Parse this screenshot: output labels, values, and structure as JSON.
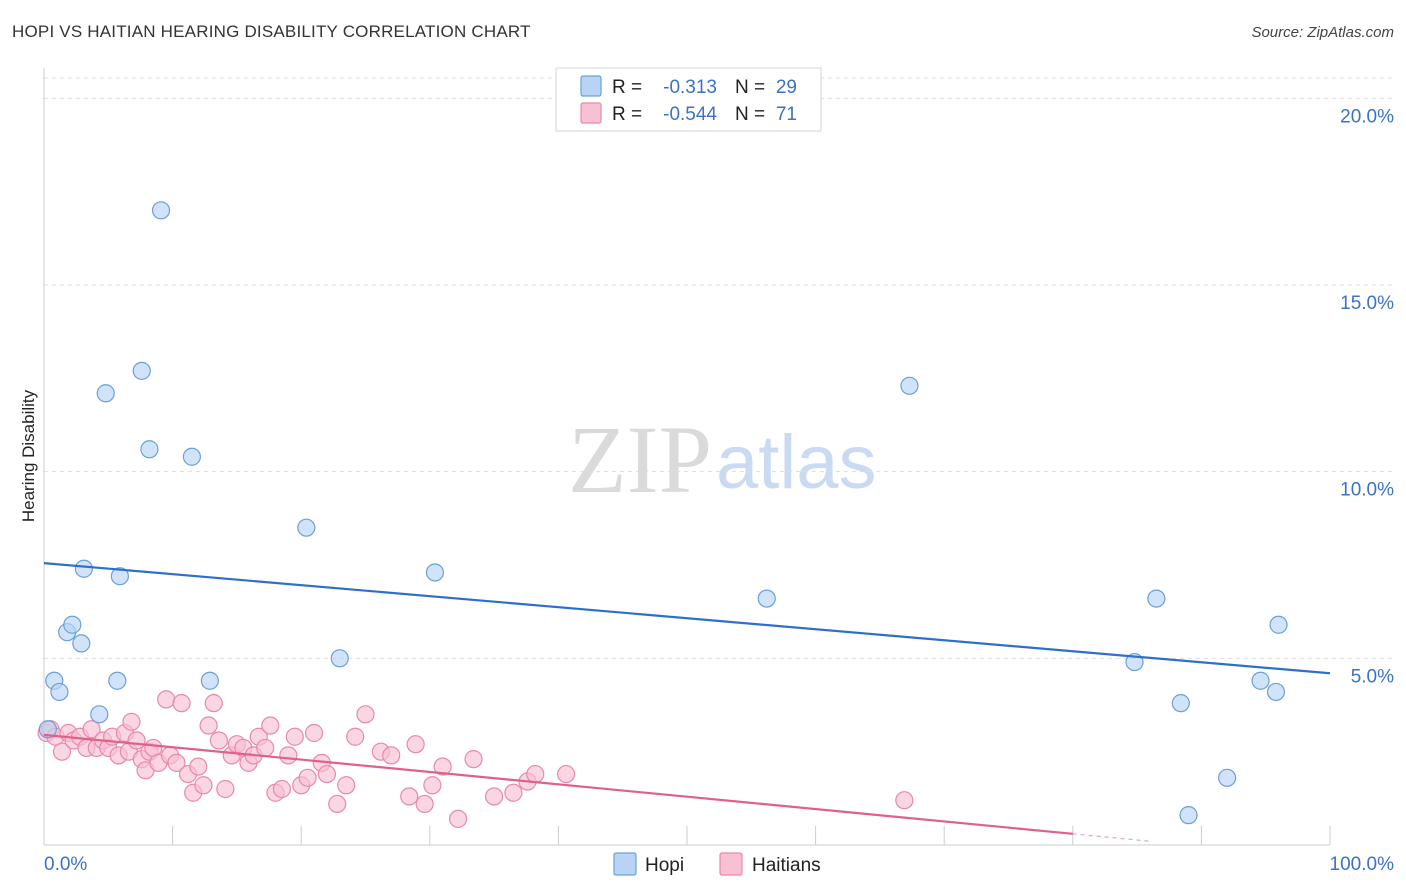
{
  "title": "HOPI VS HAITIAN HEARING DISABILITY CORRELATION CHART",
  "source": "Source: ZipAtlas.com",
  "watermark": {
    "part1": "ZIP",
    "part2": "atlas"
  },
  "colors": {
    "hopi_fill": "#b8d4f5",
    "hopi_stroke": "#6d9fd6",
    "hopi_line": "#2d6fcc",
    "haitians_fill": "#f7c0d3",
    "haitians_stroke": "#e889a9",
    "haitians_line": "#e0608c",
    "grid": "#dddddd",
    "tick_label": "#3b72c4"
  },
  "legend_top": {
    "rows": [
      {
        "series": "Hopi",
        "r_label": "R =",
        "r_value": "-0.313",
        "n_label": "N =",
        "n_value": "29"
      },
      {
        "series": "Haitians",
        "r_label": "R =",
        "r_value": "-0.544",
        "n_label": "N =",
        "n_value": "71"
      }
    ]
  },
  "legend_bottom": {
    "items": [
      "Hopi",
      "Haitians"
    ]
  },
  "chart_data": {
    "type": "scatter",
    "title": "HOPI VS HAITIAN HEARING DISABILITY CORRELATION CHART",
    "xlabel": "",
    "ylabel": "Hearing Disability",
    "xlim": [
      0,
      100
    ],
    "ylim": [
      0,
      21
    ],
    "x_tick_labels": [
      "0.0%",
      "100.0%"
    ],
    "y_ticks": [
      5,
      10,
      15,
      20
    ],
    "y_tick_labels": [
      "5.0%",
      "10.0%",
      "15.0%",
      "20.0%"
    ],
    "grid": true,
    "legend": "top-center",
    "series": [
      {
        "name": "Hopi",
        "r": -0.313,
        "n": 29,
        "trend": {
          "x": [
            0,
            100
          ],
          "y": [
            7.55,
            4.6
          ]
        },
        "points": [
          {
            "x": 0.3,
            "y": 3.1
          },
          {
            "x": 0.8,
            "y": 4.4
          },
          {
            "x": 1.2,
            "y": 4.1
          },
          {
            "x": 1.8,
            "y": 5.7
          },
          {
            "x": 2.2,
            "y": 5.9
          },
          {
            "x": 2.9,
            "y": 5.4
          },
          {
            "x": 3.1,
            "y": 7.4
          },
          {
            "x": 4.3,
            "y": 3.5
          },
          {
            "x": 4.8,
            "y": 12.1
          },
          {
            "x": 5.7,
            "y": 4.4
          },
          {
            "x": 5.9,
            "y": 7.2
          },
          {
            "x": 7.6,
            "y": 12.7
          },
          {
            "x": 8.2,
            "y": 10.6
          },
          {
            "x": 9.1,
            "y": 17.0
          },
          {
            "x": 11.5,
            "y": 10.4
          },
          {
            "x": 12.9,
            "y": 4.4
          },
          {
            "x": 20.4,
            "y": 8.5
          },
          {
            "x": 23.0,
            "y": 5.0
          },
          {
            "x": 30.4,
            "y": 7.3
          },
          {
            "x": 56.2,
            "y": 6.6
          },
          {
            "x": 67.3,
            "y": 12.3
          },
          {
            "x": 84.8,
            "y": 4.9
          },
          {
            "x": 86.5,
            "y": 6.6
          },
          {
            "x": 88.4,
            "y": 3.8
          },
          {
            "x": 89.0,
            "y": 0.8
          },
          {
            "x": 92.0,
            "y": 1.8
          },
          {
            "x": 94.6,
            "y": 4.4
          },
          {
            "x": 95.8,
            "y": 4.1
          },
          {
            "x": 96.0,
            "y": 5.9
          }
        ]
      },
      {
        "name": "Haitians",
        "r": -0.544,
        "n": 71,
        "trend": {
          "x": [
            0,
            80
          ],
          "y": [
            2.95,
            0.3
          ]
        },
        "trend_dashed": {
          "x": [
            80,
            86
          ],
          "y": [
            0.3,
            0.1
          ]
        },
        "points": [
          {
            "x": 0.2,
            "y": 3.0
          },
          {
            "x": 0.5,
            "y": 3.1
          },
          {
            "x": 0.9,
            "y": 2.9
          },
          {
            "x": 1.4,
            "y": 2.5
          },
          {
            "x": 1.9,
            "y": 3.0
          },
          {
            "x": 2.3,
            "y": 2.8
          },
          {
            "x": 2.8,
            "y": 2.9
          },
          {
            "x": 3.3,
            "y": 2.6
          },
          {
            "x": 3.7,
            "y": 3.1
          },
          {
            "x": 4.1,
            "y": 2.6
          },
          {
            "x": 4.6,
            "y": 2.8
          },
          {
            "x": 5.0,
            "y": 2.6
          },
          {
            "x": 5.3,
            "y": 2.9
          },
          {
            "x": 5.8,
            "y": 2.4
          },
          {
            "x": 6.3,
            "y": 3.0
          },
          {
            "x": 6.6,
            "y": 2.5
          },
          {
            "x": 6.8,
            "y": 3.3
          },
          {
            "x": 7.2,
            "y": 2.8
          },
          {
            "x": 7.6,
            "y": 2.3
          },
          {
            "x": 7.9,
            "y": 2.0
          },
          {
            "x": 8.2,
            "y": 2.5
          },
          {
            "x": 8.5,
            "y": 2.6
          },
          {
            "x": 8.9,
            "y": 2.2
          },
          {
            "x": 9.5,
            "y": 3.9
          },
          {
            "x": 9.8,
            "y": 2.4
          },
          {
            "x": 10.3,
            "y": 2.2
          },
          {
            "x": 10.7,
            "y": 3.8
          },
          {
            "x": 11.2,
            "y": 1.9
          },
          {
            "x": 11.6,
            "y": 1.4
          },
          {
            "x": 12.0,
            "y": 2.1
          },
          {
            "x": 12.4,
            "y": 1.6
          },
          {
            "x": 12.8,
            "y": 3.2
          },
          {
            "x": 13.2,
            "y": 3.8
          },
          {
            "x": 13.6,
            "y": 2.8
          },
          {
            "x": 14.1,
            "y": 1.5
          },
          {
            "x": 14.6,
            "y": 2.4
          },
          {
            "x": 15.0,
            "y": 2.7
          },
          {
            "x": 15.5,
            "y": 2.6
          },
          {
            "x": 15.9,
            "y": 2.2
          },
          {
            "x": 16.3,
            "y": 2.4
          },
          {
            "x": 16.7,
            "y": 2.9
          },
          {
            "x": 17.2,
            "y": 2.6
          },
          {
            "x": 17.6,
            "y": 3.2
          },
          {
            "x": 18.0,
            "y": 1.4
          },
          {
            "x": 18.5,
            "y": 1.5
          },
          {
            "x": 19.0,
            "y": 2.4
          },
          {
            "x": 19.5,
            "y": 2.9
          },
          {
            "x": 20.0,
            "y": 1.6
          },
          {
            "x": 20.5,
            "y": 1.8
          },
          {
            "x": 21.0,
            "y": 3.0
          },
          {
            "x": 21.6,
            "y": 2.2
          },
          {
            "x": 22.0,
            "y": 1.9
          },
          {
            "x": 22.8,
            "y": 1.1
          },
          {
            "x": 23.5,
            "y": 1.6
          },
          {
            "x": 24.2,
            "y": 2.9
          },
          {
            "x": 25.0,
            "y": 3.5
          },
          {
            "x": 26.2,
            "y": 2.5
          },
          {
            "x": 27.0,
            "y": 2.4
          },
          {
            "x": 28.4,
            "y": 1.3
          },
          {
            "x": 28.9,
            "y": 2.7
          },
          {
            "x": 29.6,
            "y": 1.1
          },
          {
            "x": 30.2,
            "y": 1.6
          },
          {
            "x": 31.0,
            "y": 2.1
          },
          {
            "x": 32.2,
            "y": 0.7
          },
          {
            "x": 33.4,
            "y": 2.3
          },
          {
            "x": 35.0,
            "y": 1.3
          },
          {
            "x": 36.5,
            "y": 1.4
          },
          {
            "x": 37.6,
            "y": 1.7
          },
          {
            "x": 38.2,
            "y": 1.9
          },
          {
            "x": 40.6,
            "y": 1.9
          },
          {
            "x": 66.9,
            "y": 1.2
          }
        ]
      }
    ]
  }
}
